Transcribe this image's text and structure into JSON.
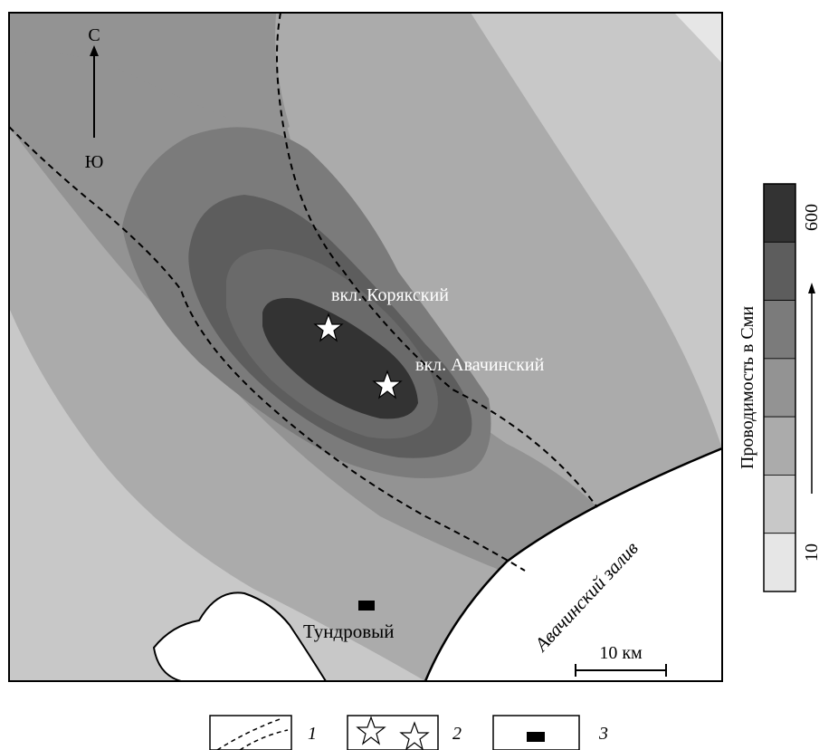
{
  "compass": {
    "north": "С",
    "south": "Ю"
  },
  "places": {
    "koryaksky": "вкл. Корякский",
    "avachinsky": "вкл. Авачинский",
    "tundrovy": "Тундровый",
    "bay": "Авачинский залив"
  },
  "scale_bar": {
    "label": "10 км"
  },
  "colorbar": {
    "title": "Проводимость в Сми",
    "max_label": "600",
    "min_label": "10",
    "colors": [
      "#333333",
      "#5d5d5d",
      "#7b7b7b",
      "#939393",
      "#ababab",
      "#c8c8c8",
      "#e6e6e6"
    ]
  },
  "legend": {
    "items": [
      {
        "number": "1",
        "symbol": "dashed-fault-line"
      },
      {
        "number": "2",
        "symbol": "star-icon"
      },
      {
        "number": "3",
        "symbol": "black-rectangle"
      }
    ]
  }
}
